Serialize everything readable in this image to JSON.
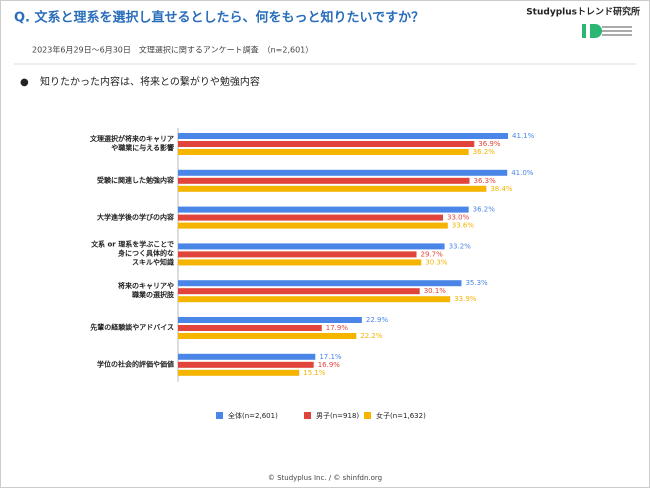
{
  "header": {
    "title": "Q. 文系と理系を選択し直せるとしたら、何をもっと知りたいですか？",
    "brand": "Studyplusトレンド研究所",
    "subtitle": "2023年6月29日〜6月30日　文理選択に関するアンケート調査　（n=2,601）"
  },
  "chart_data": {
    "type": "barh",
    "title": "知りたかった内容は、将来との繋がりや勉強内容",
    "categories": [
      "文理選択が将来のキャリア\nや職業に与える影響",
      "受験に関連した勉強内容",
      "大学進学後の学びの内容",
      "文系 or 理系を学ぶことで\n身につく具体的な\nスキルや知識",
      "将来のキャリアや\n職業の選択肢",
      "先輩の経験談やアドバイス",
      "学位の社会的評価や価値"
    ],
    "series": [
      {
        "name": "全体(n=2,601)",
        "color": "#4a86e8",
        "values": [
          41.1,
          41.0,
          36.2,
          33.2,
          35.3,
          22.9,
          17.1
        ],
        "value_labels": [
          "41.1%",
          "41.0%",
          "36.2%",
          "33.2%",
          "35.3%",
          "22.9%",
          "17.1%"
        ]
      },
      {
        "name": "男子(n=918)",
        "color": "#e0443a",
        "values": [
          36.9,
          36.3,
          33.0,
          29.7,
          30.1,
          17.9,
          16.9
        ],
        "value_labels": [
          "36.9%",
          "36.3%",
          "33.0%",
          "29.7%",
          "30.1%",
          "17.9%",
          "16.9%"
        ]
      },
      {
        "name": "女子(n=1,632)",
        "color": "#f4b400",
        "values": [
          36.2,
          38.4,
          33.6,
          30.3,
          33.9,
          22.2,
          15.1
        ],
        "value_labels": [
          "36.2%",
          "38.4%",
          "33.6%",
          "30.3%",
          "33.9%",
          "22.2%",
          "15.1%"
        ]
      }
    ],
    "legend": "bottom"
  },
  "footer": "© Studyplus Inc. / © shinfdn.org"
}
